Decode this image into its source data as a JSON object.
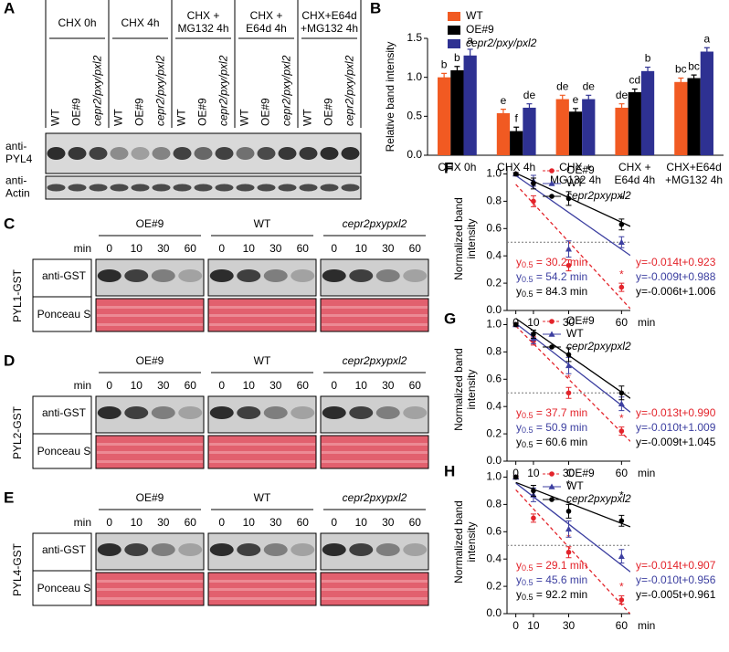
{
  "blots": {
    "A": {
      "panel": "A",
      "groups": [
        [
          "CHX 0h"
        ],
        [
          "CHX 4h"
        ],
        [
          "CHX +",
          "MG132 4h"
        ],
        [
          "CHX +",
          "E64d 4h"
        ],
        [
          "CHX+E64d",
          "+MG132 4h"
        ]
      ],
      "lanes": [
        "WT",
        "OE#9",
        "cepr2/pxy/pxl2"
      ],
      "rows": [
        [
          "anti-",
          "PYL4"
        ],
        [
          "anti-",
          "Actin"
        ]
      ]
    },
    "C": {
      "panel": "C",
      "construct": "PYL1-GST",
      "groups": [
        "OE#9",
        "WT",
        "cepr2pxypxl2"
      ],
      "time_label": "min",
      "times": [
        0,
        10,
        30,
        60
      ],
      "rows": [
        "anti-GST",
        "Ponceau S"
      ]
    },
    "D": {
      "panel": "D",
      "construct": "PYL2-GST",
      "groups": [
        "OE#9",
        "WT",
        "cepr2pxypxl2"
      ],
      "time_label": "min",
      "times": [
        0,
        10,
        30,
        60
      ],
      "rows": [
        "anti-GST",
        "Ponceau S"
      ]
    },
    "E": {
      "panel": "E",
      "construct": "PYL4-GST",
      "groups": [
        "OE#9",
        "WT",
        "cepr2pxypxl2"
      ],
      "time_label": "min",
      "times": [
        0,
        10,
        30,
        60
      ],
      "rows": [
        "anti-GST",
        "Ponceau S"
      ]
    }
  },
  "chart_data": [
    {
      "panel": "B",
      "type": "bar",
      "ylabel": "Relative band intensity",
      "categories": [
        [
          "CHX 0h"
        ],
        [
          "CHX 4h"
        ],
        [
          "CHX +",
          "MG132 4h"
        ],
        [
          "CHX +",
          "E64d 4h"
        ],
        [
          "CHX+E64d",
          "+MG132 4h"
        ]
      ],
      "ylim": [
        0,
        1.5
      ],
      "yticks": [
        {
          "value": 0,
          "label": "0.0"
        },
        {
          "value": 0.5,
          "label": "0.5"
        },
        {
          "value": 1,
          "label": "1.0"
        },
        {
          "value": 1.5,
          "label": "1.5"
        }
      ],
      "series": [
        {
          "name": "WT",
          "color": "#f15a22",
          "values": [
            1.0,
            0.54,
            0.72,
            0.61,
            0.94
          ],
          "errors": [
            0.05,
            0.05,
            0.05,
            0.05,
            0.05
          ],
          "letters": [
            "b",
            "e",
            "de",
            "de",
            "bc"
          ]
        },
        {
          "name": "OE#9",
          "color": "#000000",
          "values": [
            1.09,
            0.31,
            0.56,
            0.81,
            0.99
          ],
          "errors": [
            0.05,
            0.05,
            0.04,
            0.04,
            0.04
          ],
          "letters": [
            "b",
            "f",
            "e",
            "cd",
            "bc"
          ]
        },
        {
          "name": "cepr2/pxy/pxl2",
          "color": "#2e3192",
          "values": [
            1.28,
            0.61,
            0.72,
            1.08,
            1.33
          ],
          "errors": [
            0.08,
            0.05,
            0.05,
            0.05,
            0.05
          ],
          "letters": [
            "a",
            "de",
            "de",
            "b",
            "a"
          ]
        }
      ]
    },
    {
      "panel": "F",
      "type": "scatter",
      "ylabel": [
        "Normalized band",
        "intensity"
      ],
      "xlabel": "min",
      "x": [
        0,
        10,
        30,
        60
      ],
      "xlim": [
        -5,
        65
      ],
      "xticks": [
        0,
        10,
        30,
        60
      ],
      "ylim": [
        0,
        1.05
      ],
      "yticks": [
        {
          "value": 0,
          "label": "0.0"
        },
        {
          "value": 0.2,
          "label": "0.2"
        },
        {
          "value": 0.4,
          "label": "0.4"
        },
        {
          "value": 0.6,
          "label": "0.6"
        },
        {
          "value": 0.8,
          "label": "0.8"
        },
        {
          "value": 1,
          "label": "1.0"
        }
      ],
      "threshold": 0.5,
      "series": [
        {
          "name": "OE#9",
          "color": "#e3242b",
          "marker": "circle",
          "dashed": true,
          "values": [
            1.0,
            0.8,
            0.33,
            0.17
          ],
          "errors": [
            0.01,
            0.04,
            0.04,
            0.03
          ],
          "stars": [
            null,
            null,
            "*",
            "*"
          ],
          "fit": {
            "slope": -0.014,
            "intercept": 0.923,
            "label": "y=-0.014t+0.923"
          },
          "half_life": {
            "symbol": "y",
            "sub": "0.5",
            "text": " = 30.2 min"
          }
        },
        {
          "name": "WT",
          "color": "#3c3fa0",
          "marker": "triangle",
          "dashed": false,
          "values": [
            1.0,
            0.95,
            0.45,
            0.5
          ],
          "errors": [
            0.01,
            0.04,
            0.06,
            0.04
          ],
          "fit": {
            "slope": -0.009,
            "intercept": 0.988,
            "label": "y=-0.009t+0.988"
          },
          "half_life": {
            "symbol": "y",
            "sub": "0.5",
            "text": " = 54.2 min"
          }
        },
        {
          "name": "cepr2pxypxl2",
          "color": "#000000",
          "marker": "circle",
          "dashed": false,
          "values": [
            1.0,
            0.93,
            0.82,
            0.63
          ],
          "errors": [
            0.01,
            0.04,
            0.05,
            0.04
          ],
          "stars": [
            null,
            null,
            null,
            "*"
          ],
          "fit": {
            "slope": -0.006,
            "intercept": 1.006,
            "label": "y=-0.006t+1.006"
          },
          "half_life": {
            "symbol": "y",
            "sub": "0.5",
            "text": " = 84.3 min"
          }
        }
      ]
    },
    {
      "panel": "G",
      "type": "scatter",
      "ylabel": [
        "Normalized band",
        "intensity"
      ],
      "xlabel": "min",
      "x": [
        0,
        10,
        30,
        60
      ],
      "xlim": [
        -5,
        65
      ],
      "xticks": [
        0,
        10,
        30,
        60
      ],
      "ylim": [
        0,
        1.05
      ],
      "yticks": [
        {
          "value": 0,
          "label": "0.0"
        },
        {
          "value": 0.2,
          "label": "0.2"
        },
        {
          "value": 0.4,
          "label": "0.4"
        },
        {
          "value": 0.6,
          "label": "0.6"
        },
        {
          "value": 0.8,
          "label": "0.8"
        },
        {
          "value": 1,
          "label": "1.0"
        }
      ],
      "threshold": 0.5,
      "series": [
        {
          "name": "OE#9",
          "color": "#e3242b",
          "marker": "circle",
          "dashed": true,
          "values": [
            1.0,
            0.88,
            0.5,
            0.22
          ],
          "errors": [
            0.01,
            0.03,
            0.04,
            0.03
          ],
          "stars": [
            null,
            null,
            "*",
            "*"
          ],
          "fit": {
            "slope": -0.013,
            "intercept": 0.99,
            "label": "y=-0.013t+0.990"
          },
          "half_life": {
            "symbol": "y",
            "sub": "0.5",
            "text": " = 37.7 min"
          }
        },
        {
          "name": "WT",
          "color": "#3c3fa0",
          "marker": "triangle",
          "dashed": false,
          "values": [
            1.0,
            0.9,
            0.7,
            0.42
          ],
          "errors": [
            0.01,
            0.04,
            0.06,
            0.05
          ],
          "fit": {
            "slope": -0.01,
            "intercept": 1.009,
            "label": "y=-0.010t+1.009"
          },
          "half_life": {
            "symbol": "y",
            "sub": "0.5",
            "text": " = 50.9 min"
          }
        },
        {
          "name": "cepr2pxypxl2",
          "color": "#000000",
          "marker": "circle",
          "dashed": false,
          "values": [
            1.0,
            0.93,
            0.78,
            0.5
          ],
          "errors": [
            0.01,
            0.03,
            0.05,
            0.05
          ],
          "fit": {
            "slope": -0.009,
            "intercept": 1.045,
            "label": "y=-0.009t+1.045"
          },
          "half_life": {
            "symbol": "y",
            "sub": "0.5",
            "text": " = 60.6 min"
          }
        }
      ]
    },
    {
      "panel": "H",
      "type": "scatter",
      "ylabel": [
        "Normalized band",
        "intensity"
      ],
      "xlabel": "min",
      "x": [
        0,
        10,
        30,
        60
      ],
      "xlim": [
        -5,
        65
      ],
      "xticks": [
        0,
        10,
        30,
        60
      ],
      "ylim": [
        0,
        1.05
      ],
      "yticks": [
        {
          "value": 0,
          "label": "0.0"
        },
        {
          "value": 0.2,
          "label": "0.2"
        },
        {
          "value": 0.4,
          "label": "0.4"
        },
        {
          "value": 0.6,
          "label": "0.6"
        },
        {
          "value": 0.8,
          "label": "0.8"
        },
        {
          "value": 1,
          "label": "1.0"
        }
      ],
      "threshold": 0.5,
      "series": [
        {
          "name": "OE#9",
          "color": "#e3242b",
          "marker": "circle",
          "dashed": true,
          "values": [
            1.0,
            0.7,
            0.45,
            0.1
          ],
          "errors": [
            0.01,
            0.03,
            0.04,
            0.03
          ],
          "stars": [
            null,
            null,
            "*",
            "*"
          ],
          "fit": {
            "slope": -0.014,
            "intercept": 0.907,
            "label": "y=-0.014t+0.907"
          },
          "half_life": {
            "symbol": "y",
            "sub": "0.5",
            "text": " = 29.1 min"
          }
        },
        {
          "name": "WT",
          "color": "#3c3fa0",
          "marker": "triangle",
          "dashed": false,
          "values": [
            1.0,
            0.87,
            0.62,
            0.42
          ],
          "errors": [
            0.01,
            0.05,
            0.06,
            0.05
          ],
          "fit": {
            "slope": -0.01,
            "intercept": 0.956,
            "label": "y=-0.010t+0.956"
          },
          "half_life": {
            "symbol": "y",
            "sub": "0.5",
            "text": " = 45.6 min"
          }
        },
        {
          "name": "cepr2pxypxl2",
          "color": "#000000",
          "marker": "circle",
          "dashed": false,
          "values": [
            1.0,
            0.9,
            0.75,
            0.68
          ],
          "errors": [
            0.01,
            0.04,
            0.05,
            0.04
          ],
          "stars": [
            null,
            null,
            "*",
            "*"
          ],
          "fit": {
            "slope": -0.005,
            "intercept": 0.961,
            "label": "y=-0.005t+0.961"
          },
          "half_life": {
            "symbol": "y",
            "sub": "0.5",
            "text": " = 92.2 min"
          }
        }
      ]
    }
  ]
}
